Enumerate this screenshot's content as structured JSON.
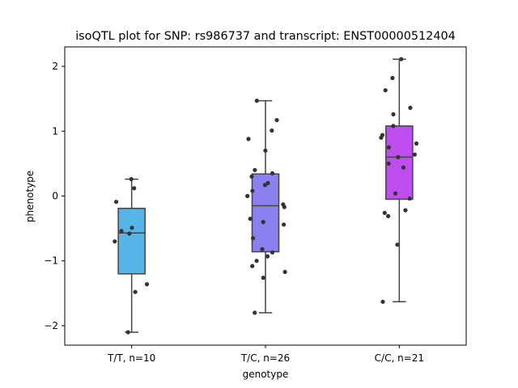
{
  "chart_data": {
    "type": "box",
    "title": "isoQTL plot for SNP: rs986737 and transcript: ENST00000512404",
    "xlabel": "genotype",
    "ylabel": "phenotype",
    "ylim": [
      -2.3,
      2.3
    ],
    "yticks": [
      -2,
      -1,
      0,
      1,
      2
    ],
    "ytick_labels": [
      "−2",
      "−1",
      "0",
      "1",
      "2"
    ],
    "grid": false,
    "categories": [
      "T/T, n=10",
      "T/C, n=26",
      "C/C, n=21"
    ],
    "colors": [
      "#56b4e9",
      "#8c7ff0",
      "#bf4ef0"
    ],
    "boxes": [
      {
        "category": "T/T, n=10",
        "whisker_low": -2.1,
        "q1": -1.2,
        "median": -0.57,
        "q3": -0.19,
        "whisker_high": 0.26
      },
      {
        "category": "T/C, n=26",
        "whisker_low": -1.8,
        "q1": -0.86,
        "median": -0.15,
        "q3": 0.34,
        "whisker_high": 1.47
      },
      {
        "category": "C/C, n=21",
        "whisker_low": -1.63,
        "q1": -0.05,
        "median": 0.6,
        "q3": 1.08,
        "whisker_high": 2.11
      }
    ],
    "points": [
      [
        0.26,
        0.12,
        -0.09,
        -0.54,
        -0.58,
        -0.49,
        -0.7,
        -1.36,
        -1.48,
        -2.1
      ],
      [
        1.47,
        1.17,
        1.01,
        0.88,
        0.7,
        0.4,
        0.35,
        0.3,
        0.2,
        0.17,
        0.08,
        0.0,
        -0.13,
        -0.17,
        -0.35,
        -0.4,
        -0.44,
        -0.65,
        -0.82,
        -0.93,
        -0.87,
        -1.0,
        -1.08,
        -1.17,
        -1.26,
        -1.8
      ],
      [
        2.11,
        1.82,
        1.63,
        1.36,
        1.26,
        1.08,
        0.94,
        0.81,
        0.75,
        0.64,
        0.6,
        0.5,
        0.44,
        0.04,
        -0.04,
        -0.22,
        -0.26,
        -0.31,
        -0.75,
        -1.63,
        0.9
      ]
    ]
  }
}
